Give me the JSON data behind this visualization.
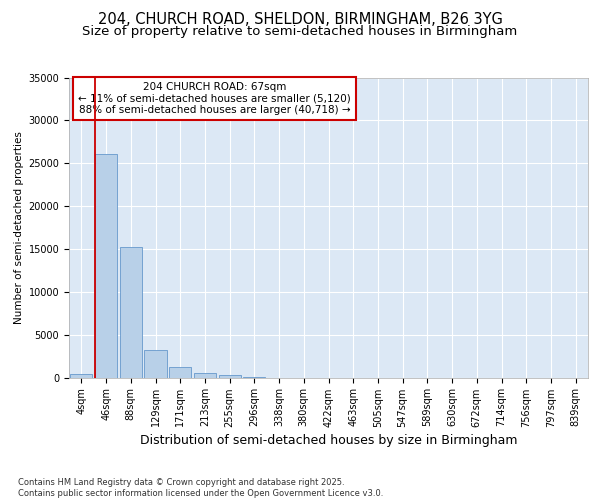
{
  "title1": "204, CHURCH ROAD, SHELDON, BIRMINGHAM, B26 3YG",
  "title2": "Size of property relative to semi-detached houses in Birmingham",
  "xlabel": "Distribution of semi-detached houses by size in Birmingham",
  "ylabel": "Number of semi-detached properties",
  "categories": [
    "4sqm",
    "46sqm",
    "88sqm",
    "129sqm",
    "171sqm",
    "213sqm",
    "255sqm",
    "296sqm",
    "338sqm",
    "380sqm",
    "422sqm",
    "463sqm",
    "505sqm",
    "547sqm",
    "589sqm",
    "630sqm",
    "672sqm",
    "714sqm",
    "756sqm",
    "797sqm",
    "839sqm"
  ],
  "values": [
    400,
    26100,
    15200,
    3200,
    1200,
    500,
    350,
    100,
    0,
    0,
    0,
    0,
    0,
    0,
    0,
    0,
    0,
    0,
    0,
    0,
    0
  ],
  "bar_color": "#b8d0e8",
  "bar_edge_color": "#6699cc",
  "vline_x_index": 1,
  "vline_color": "#cc0000",
  "annotation_title": "204 CHURCH ROAD: 67sqm",
  "annotation_line1": "← 11% of semi-detached houses are smaller (5,120)",
  "annotation_line2": "88% of semi-detached houses are larger (40,718) →",
  "annotation_box_facecolor": "#ffffff",
  "annotation_box_edgecolor": "#cc0000",
  "ylim": [
    0,
    35000
  ],
  "yticks": [
    0,
    5000,
    10000,
    15000,
    20000,
    25000,
    30000,
    35000
  ],
  "footer": "Contains HM Land Registry data © Crown copyright and database right 2025.\nContains public sector information licensed under the Open Government Licence v3.0.",
  "fig_bg_color": "#ffffff",
  "plot_bg_color": "#dce8f5",
  "grid_color": "#ffffff",
  "title1_fontsize": 10.5,
  "title2_fontsize": 9.5,
  "xlabel_fontsize": 9,
  "ylabel_fontsize": 7.5,
  "tick_fontsize": 7,
  "footer_fontsize": 6,
  "annot_fontsize": 7.5
}
